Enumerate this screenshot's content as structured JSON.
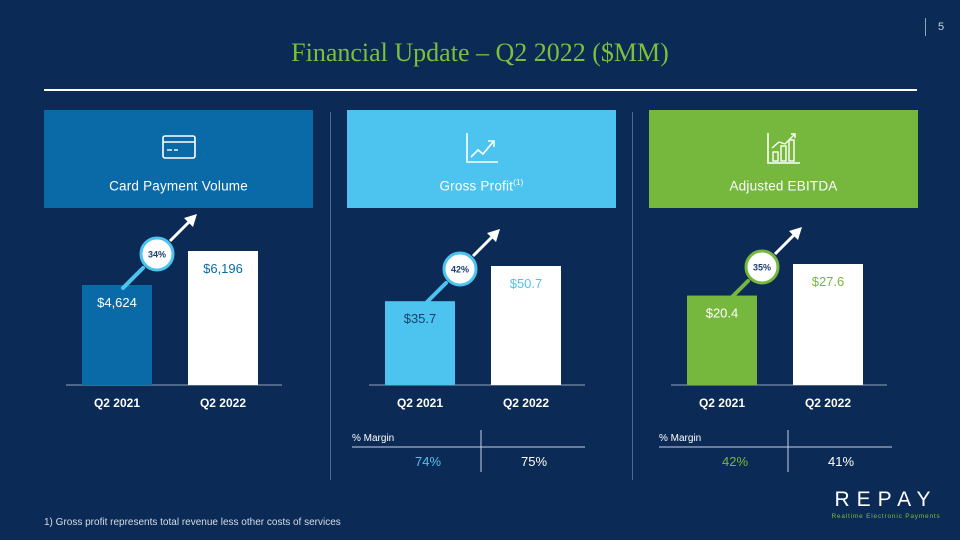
{
  "page_number": "5",
  "title": "Financial Update – Q2 2022 ($MM)",
  "panels": [
    {
      "header": "Card Payment Volume",
      "header_sup": "",
      "header_color": "#0a6aa8",
      "icon": "credit-card-icon",
      "growth": "34%",
      "bars": [
        {
          "label": "Q2 2021",
          "value": 4624,
          "display": "$4,624",
          "color": "#0a6aa8",
          "text_color": "#ffffff"
        },
        {
          "label": "Q2 2022",
          "value": 6196,
          "display": "$6,196",
          "color": "#ffffff",
          "text_color": "#0a6aa8"
        }
      ]
    },
    {
      "header": "Gross Profit",
      "header_sup": "(1)",
      "header_color": "#4dc4ef",
      "icon": "line-chart-icon",
      "growth": "42%",
      "bars": [
        {
          "label": "Q2 2021",
          "value": 35.7,
          "display": "$35.7",
          "color": "#4dc4ef",
          "text_color": "#1a3f6e"
        },
        {
          "label": "Q2 2022",
          "value": 50.7,
          "display": "$50.7",
          "color": "#ffffff",
          "text_color": "#4dc4ef"
        }
      ],
      "margin": {
        "label": "% Margin",
        "values": [
          "74%",
          "75%"
        ],
        "colors": [
          "#4dc4ef",
          "#ffffff"
        ]
      }
    },
    {
      "header": "Adjusted EBITDA",
      "header_sup": "",
      "header_color": "#76b83d",
      "icon": "bar-chart-icon",
      "growth": "35%",
      "bars": [
        {
          "label": "Q2 2021",
          "value": 20.4,
          "display": "$20.4",
          "color": "#76b83d",
          "text_color": "#ffffff"
        },
        {
          "label": "Q2 2022",
          "value": 27.6,
          "display": "$27.6",
          "color": "#ffffff",
          "text_color": "#76b83d"
        }
      ],
      "margin": {
        "label": "% Margin",
        "values": [
          "42%",
          "41%"
        ],
        "colors": [
          "#76b83d",
          "#ffffff"
        ]
      }
    }
  ],
  "chart_data": [
    {
      "type": "bar",
      "title": "Card Payment Volume",
      "categories": [
        "Q2 2021",
        "Q2 2022"
      ],
      "values": [
        4624,
        6196
      ],
      "growth": "34%"
    },
    {
      "type": "bar",
      "title": "Gross Profit",
      "categories": [
        "Q2 2021",
        "Q2 2022"
      ],
      "values": [
        35.7,
        50.7
      ],
      "growth": "42%",
      "margin": [
        "74%",
        "75%"
      ]
    },
    {
      "type": "bar",
      "title": "Adjusted EBITDA",
      "categories": [
        "Q2 2021",
        "Q2 2022"
      ],
      "values": [
        20.4,
        27.6
      ],
      "growth": "35%",
      "margin": [
        "42%",
        "41%"
      ]
    }
  ],
  "footnote": "1)  Gross profit represents total revenue less other costs of services",
  "logo": {
    "word": "REPAY",
    "tagline": "Realtime Electronic Payments"
  }
}
